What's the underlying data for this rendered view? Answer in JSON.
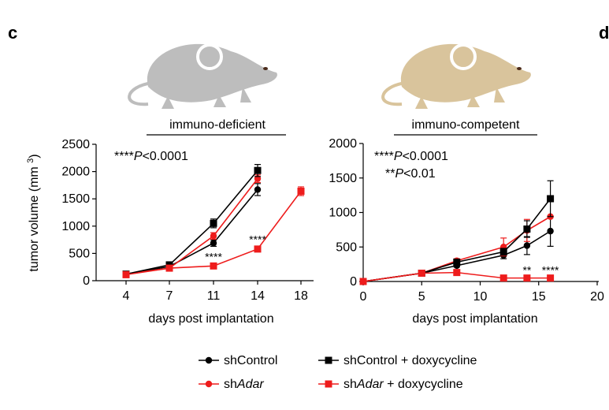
{
  "panels": {
    "left_letter": "c",
    "right_letter": "d"
  },
  "colors": {
    "black": "#000000",
    "red": "#ee1c1c",
    "mouse_gray": "#bdbdbd",
    "mouse_tan": "#d9c49c"
  },
  "chart_data": [
    {
      "type": "line",
      "title": "immuno-deficient",
      "xlabel": "days post implantation",
      "ylabel": "tumor volume (mm³)",
      "x_ticks": [
        "4",
        "7",
        "11",
        "14",
        "18"
      ],
      "x_scale": "categorical",
      "ylim": [
        0,
        2500
      ],
      "y_ticks": [
        0,
        500,
        1000,
        1500,
        2000,
        2500
      ],
      "annotations": [
        {
          "stars": "****",
          "text": "P<0.0001"
        }
      ],
      "significance_marks": [
        {
          "x": "11",
          "y": 370,
          "text": "****"
        },
        {
          "x": "14",
          "y": 690,
          "text": "****"
        }
      ],
      "series": [
        {
          "name": "shControl",
          "color": "#000000",
          "marker": "circle",
          "x": [
            "4",
            "7",
            "11",
            "14"
          ],
          "y": [
            120,
            260,
            690,
            1670
          ],
          "err": [
            0,
            20,
            60,
            110
          ]
        },
        {
          "name": "shAdar",
          "color": "#ee1c1c",
          "marker": "circle",
          "x": [
            "4",
            "7",
            "11",
            "14"
          ],
          "y": [
            120,
            230,
            820,
            1870
          ],
          "err": [
            0,
            20,
            60,
            70
          ]
        },
        {
          "name": "shControl + doxycycline",
          "color": "#000000",
          "marker": "square",
          "x": [
            "4",
            "7",
            "11",
            "14"
          ],
          "y": [
            120,
            290,
            1050,
            2020
          ],
          "err": [
            0,
            20,
            80,
            110
          ]
        },
        {
          "name": "shAdar + doxycycline",
          "color": "#ee1c1c",
          "marker": "square",
          "x": [
            "4",
            "7",
            "11",
            "14",
            "18"
          ],
          "y": [
            110,
            230,
            270,
            580,
            1640
          ],
          "err": [
            0,
            15,
            20,
            30,
            80
          ]
        }
      ]
    },
    {
      "type": "line",
      "title": "immuno-competent",
      "xlabel": "days post implantation",
      "ylabel": "",
      "xlim": [
        0,
        20
      ],
      "x_ticks": [
        0,
        5,
        10,
        15,
        20
      ],
      "ylim": [
        0,
        2000
      ],
      "y_ticks": [
        0,
        500,
        1000,
        1500,
        2000
      ],
      "annotations": [
        {
          "stars": "****",
          "text": "P<0.0001"
        },
        {
          "stars": "**",
          "text": "P<0.01"
        }
      ],
      "significance_marks": [
        {
          "x": 14,
          "y": 110,
          "text": "**"
        },
        {
          "x": 16,
          "y": 110,
          "text": "****"
        }
      ],
      "series": [
        {
          "name": "shControl",
          "color": "#000000",
          "marker": "circle",
          "x": [
            0,
            5,
            8,
            12,
            14,
            16
          ],
          "y": [
            0,
            120,
            230,
            380,
            520,
            730
          ],
          "err": [
            0,
            10,
            20,
            50,
            130,
            220
          ]
        },
        {
          "name": "shAdar",
          "color": "#ee1c1c",
          "marker": "circle",
          "x": [
            0,
            5,
            8,
            12,
            14,
            16
          ],
          "y": [
            0,
            120,
            300,
            500,
            740,
            940
          ],
          "err": [
            0,
            10,
            30,
            130,
            160,
            0
          ]
        },
        {
          "name": "shControl + doxycycline",
          "color": "#000000",
          "marker": "square",
          "x": [
            0,
            5,
            8,
            12,
            14,
            16
          ],
          "y": [
            0,
            120,
            280,
            430,
            760,
            1200
          ],
          "err": [
            0,
            10,
            20,
            50,
            120,
            260
          ]
        },
        {
          "name": "shAdar + doxycycline",
          "color": "#ee1c1c",
          "marker": "square",
          "x": [
            0,
            5,
            8,
            12,
            14,
            16
          ],
          "y": [
            0,
            120,
            130,
            50,
            50,
            50
          ],
          "err": [
            0,
            10,
            10,
            10,
            10,
            10
          ]
        }
      ]
    }
  ],
  "legend": [
    {
      "prefix": "sh",
      "italic": "",
      "suffix": "Control",
      "marker": "circle",
      "color": "#000000"
    },
    {
      "prefix": "sh",
      "italic": "Adar",
      "suffix": "",
      "marker": "circle",
      "color": "#ee1c1c"
    },
    {
      "prefix": "sh",
      "italic": "",
      "suffix": "Control + doxycycline",
      "marker": "square",
      "color": "#000000"
    },
    {
      "prefix": "sh",
      "italic": "Adar",
      "suffix": " + doxycycline",
      "marker": "square",
      "color": "#ee1c1c"
    }
  ]
}
